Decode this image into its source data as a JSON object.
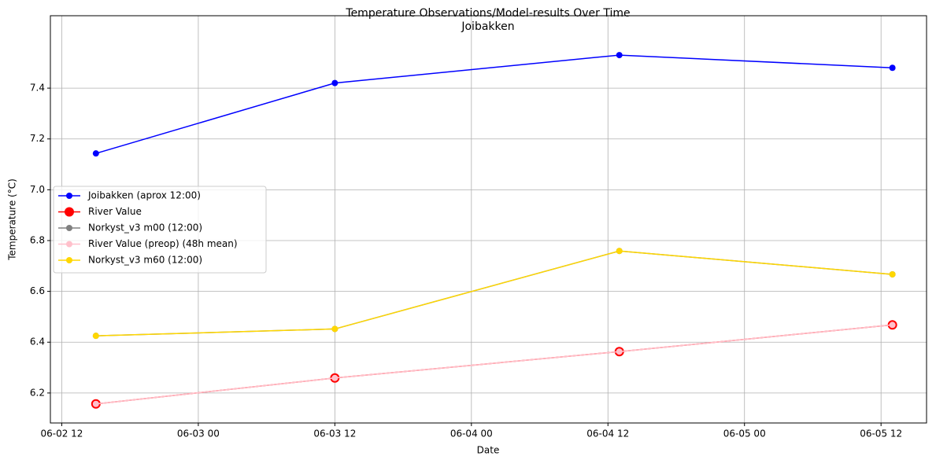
{
  "chart_data": {
    "type": "line",
    "title": "Temperature Observations/Model-results Over Time",
    "subtitle": "Joibakken",
    "x_label": "Date",
    "y_label": "Temperature (°C)",
    "x": [
      "06-02 15",
      "06-03 12",
      "06-04 13",
      "06-05 13"
    ],
    "xlim": [
      "06-02 11",
      "06-05 16"
    ],
    "xticks": [
      "06-02 12",
      "06-03 00",
      "06-03 12",
      "06-04 00",
      "06-04 12",
      "06-05 00",
      "06-05 12"
    ],
    "ylim": [
      6.082,
      7.685
    ],
    "yticks": [
      6.2,
      6.4,
      6.6,
      6.8,
      {
        "value": 7,
        "label": "7.0"
      },
      7.2,
      7.4
    ],
    "grid": true,
    "legend": "center left",
    "series": [
      {
        "name": "Joibakken (aprox 12:00)",
        "color": "#0000ff",
        "values": [
          7.143,
          7.42,
          7.53,
          7.48
        ]
      },
      {
        "name": "River Value",
        "color": "#ff0000",
        "values": [
          6.157,
          6.259,
          6.363,
          6.468
        ]
      },
      {
        "name": "Norkyst_v3 m00 (12:00)",
        "color": "#808080",
        "values": [
          6.425,
          6.452,
          6.759,
          6.667
        ]
      },
      {
        "name": "River Value (preop) (48h mean)",
        "color": "#ffc0cb",
        "values": [
          6.157,
          6.259,
          6.363,
          6.468
        ]
      },
      {
        "name": "Norkyst_v3 m60 (12:00)",
        "color": "#ffd700",
        "values": [
          6.425,
          6.452,
          6.759,
          6.667
        ]
      }
    ]
  }
}
